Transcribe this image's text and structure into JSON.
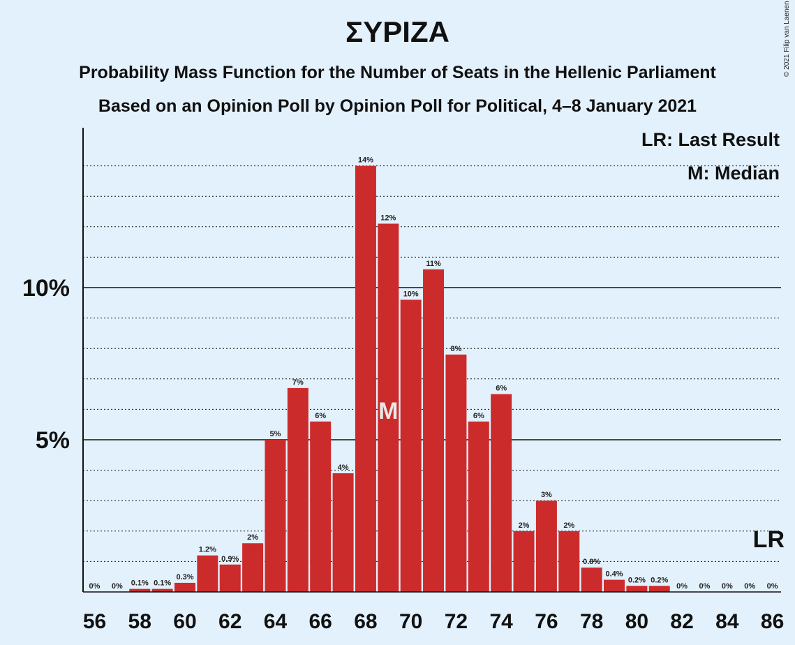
{
  "title": "ΣΥΡΙΖΑ",
  "subtitle1": "Probability Mass Function for the Number of Seats in the Hellenic Parliament",
  "subtitle2": "Based on an Opinion Poll by Opinion Poll for Political, 4–8 January 2021",
  "copyright": "© 2021 Filip van Laenen",
  "legend": {
    "lr": "LR: Last Result",
    "m": "M: Median"
  },
  "markers": {
    "median": "M",
    "median_seat": 69,
    "last_result": "LR",
    "last_result_seat": 86
  },
  "colors": {
    "bar": "#cc2b2b",
    "background": "#e3f1fd"
  },
  "chart_data": {
    "type": "bar",
    "categories": [
      56,
      57,
      58,
      59,
      60,
      61,
      62,
      63,
      64,
      65,
      66,
      67,
      68,
      69,
      70,
      71,
      72,
      73,
      74,
      75,
      76,
      77,
      78,
      79,
      80,
      81,
      82,
      83,
      84,
      85,
      86
    ],
    "values": [
      0,
      0,
      0.1,
      0.1,
      0.3,
      1.2,
      0.9,
      1.6,
      5.0,
      6.7,
      5.6,
      3.9,
      14.0,
      12.1,
      9.6,
      10.6,
      7.8,
      5.6,
      6.5,
      2.0,
      3.0,
      2.0,
      0.8,
      0.4,
      0.2,
      0.2,
      0,
      0,
      0,
      0,
      0
    ],
    "data_labels": [
      "0%",
      "0%",
      "0.1%",
      "0.1%",
      "0.3%",
      "1.2%",
      "0.9%",
      "2%",
      "5%",
      "7%",
      "6%",
      "4%",
      "14%",
      "12%",
      "10%",
      "11%",
      "8%",
      "6%",
      "6%",
      "2%",
      "3%",
      "2%",
      "0.8%",
      "0.4%",
      "0.2%",
      "0.2%",
      "0%",
      "0%",
      "0%",
      "0%",
      "0%"
    ],
    "x_tick_labels": [
      "56",
      "58",
      "60",
      "62",
      "64",
      "66",
      "68",
      "70",
      "72",
      "74",
      "76",
      "78",
      "80",
      "82",
      "84",
      "86"
    ],
    "y_tick_labels": [
      {
        "value": 5,
        "label": "5%"
      },
      {
        "value": 10,
        "label": "10%"
      }
    ],
    "ylim": [
      0,
      15
    ],
    "grid": "dotted lines every 1%, solid at 5% and 10%"
  }
}
